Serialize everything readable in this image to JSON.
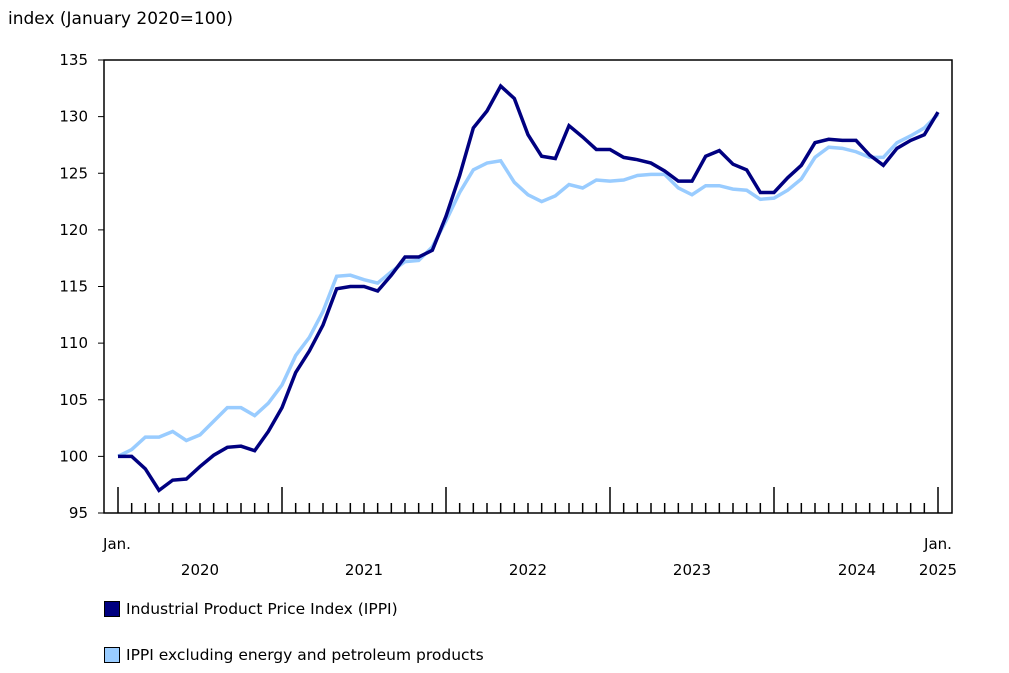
{
  "chart_data": {
    "type": "line",
    "ylabel": "index (January 2020=100)",
    "ylim": [
      95,
      135
    ],
    "yticks": [
      95,
      100,
      105,
      110,
      115,
      120,
      125,
      130,
      135
    ],
    "xrange": [
      "2020-01",
      "2025-01"
    ],
    "x_tick_labels": {
      "first": "Jan.",
      "last": "Jan."
    },
    "year_labels": [
      "2020",
      "2021",
      "2022",
      "2023",
      "2024",
      "2025"
    ],
    "grid": false,
    "legend_placement": "bottom",
    "series": [
      {
        "name": "Industrial Product Price Index (IPPI)",
        "color": "#000080",
        "values": [
          100,
          100.0,
          98.9,
          97.0,
          97.9,
          98.0,
          99.1,
          100.1,
          100.8,
          100.9,
          100.5,
          102.2,
          104.3,
          107.4,
          109.3,
          111.6,
          114.8,
          115.0,
          115.0,
          114.6,
          116.0,
          117.6,
          117.6,
          118.2,
          121.2,
          124.8,
          129.0,
          130.5,
          132.7,
          131.6,
          128.4,
          126.5,
          126.3,
          129.2,
          128.2,
          127.1,
          127.1,
          126.4,
          126.2,
          125.9,
          125.2,
          124.3,
          124.3,
          126.5,
          127.0,
          125.8,
          125.3,
          123.3,
          123.3,
          124.6,
          125.7,
          127.7,
          128.0,
          127.9,
          127.9,
          126.6,
          125.7,
          127.2,
          127.9,
          128.4,
          130.4
        ]
      },
      {
        "name": "IPPI excluding energy and petroleum products",
        "color": "#99ccff",
        "values": [
          100,
          100.6,
          101.7,
          101.7,
          102.2,
          101.4,
          101.9,
          103.1,
          104.3,
          104.3,
          103.6,
          104.7,
          106.3,
          108.9,
          110.5,
          112.8,
          115.9,
          116.0,
          115.6,
          115.3,
          116.3,
          117.2,
          117.3,
          118.5,
          120.8,
          123.3,
          125.3,
          125.9,
          126.1,
          124.2,
          123.1,
          122.5,
          123.0,
          124.0,
          123.7,
          124.4,
          124.3,
          124.4,
          124.8,
          124.9,
          124.9,
          123.7,
          123.1,
          123.9,
          123.9,
          123.6,
          123.5,
          122.7,
          122.8,
          123.5,
          124.5,
          126.4,
          127.3,
          127.2,
          126.9,
          126.4,
          126.4,
          127.7,
          128.3,
          129.0,
          130.2
        ]
      }
    ]
  }
}
